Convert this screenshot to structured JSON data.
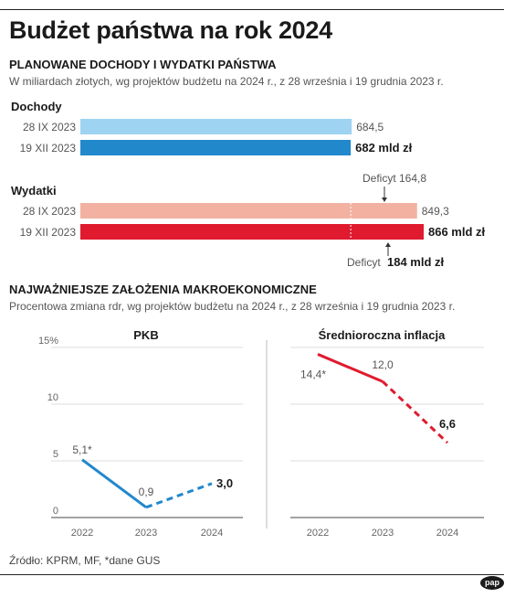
{
  "title": "Budżet państwa na rok 2024",
  "section1": {
    "title": "PLANOWANE DOCHODY I WYDATKI PAŃSTWA",
    "subtitle": "W miliardach złotych, wg projektów budżetu na 2024 r., z 28 września i 19 grudnia 2023 r."
  },
  "section2": {
    "title": "NAJWAŻNIEJSZE ZAŁOŻENIA MAKROEKONOMICZNE",
    "subtitle": "Procentowa zmiana rdr, wg projektów budżetu na 2024 r., z 28 września i 19 grudnia 2023 r."
  },
  "source": "Źródło: KPRM, MF, *dane GUS",
  "logo": "pap",
  "colors": {
    "dochody_sep": "#9fd3f2",
    "dochody_dec": "#2288cc",
    "wydatki_sep": "#f2b1a1",
    "wydatki_dec": "#e01b2f",
    "pkb_line": "#2288cc",
    "inflation_line": "#e01b2f"
  },
  "chart_data": [
    {
      "type": "bar",
      "orientation": "horizontal",
      "groups": [
        {
          "name": "Dochody",
          "rows": [
            {
              "label": "28 IX 2023",
              "value": 684.5,
              "display": "684,5",
              "emphasis": false
            },
            {
              "label": "19 XII 2023",
              "value": 682,
              "display": "682 mld zł",
              "emphasis": true
            }
          ]
        },
        {
          "name": "Wydatki",
          "rows": [
            {
              "label": "28 IX 2023",
              "value": 849.3,
              "display": "849,3",
              "emphasis": false
            },
            {
              "label": "19 XII 2023",
              "value": 866,
              "display": "866 mld zł",
              "emphasis": true
            }
          ]
        }
      ],
      "annotations": {
        "deficit_sep": {
          "prefix": "Deficyt",
          "value": "164,8"
        },
        "deficit_dec": {
          "prefix": "Deficyt",
          "value": "184 mld zł"
        }
      }
    },
    {
      "type": "line",
      "title": "PKB",
      "x": [
        "2022",
        "2023",
        "2024"
      ],
      "values": [
        5.1,
        0.9,
        3.0
      ],
      "labels": [
        "5,1*",
        "0,9",
        "3,0"
      ],
      "projected_from_index": 1,
      "ylim": [
        0,
        15
      ],
      "yticks": [
        "0",
        "5",
        "10",
        "15%"
      ],
      "ytick_values": [
        0,
        5,
        10,
        15
      ]
    },
    {
      "type": "line",
      "title": "Średnioroczna inflacja",
      "x": [
        "2022",
        "2023",
        "2024"
      ],
      "values": [
        14.4,
        12.0,
        6.6
      ],
      "labels": [
        "14,4*",
        "12,0",
        "6,6"
      ],
      "projected_from_index": 1,
      "ylim": [
        0,
        15
      ]
    }
  ]
}
